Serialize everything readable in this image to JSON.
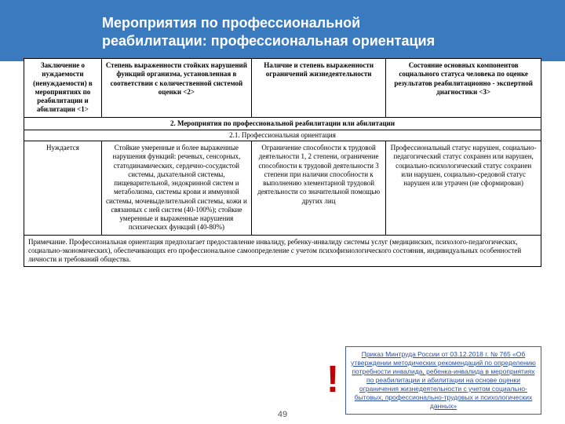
{
  "header": {
    "line1": "Мероприятия по профессиональной",
    "line2": "реабилитации: профессиональная ориентация"
  },
  "table": {
    "head": {
      "c1": "Заключение о нуждаемости (ненуждаемости) в мероприятиях по реабилитации и абилитации <1>",
      "c2": "Степень выраженности стойких нарушений функций организма, установленная в соответствии с количественной системой оценки <2>",
      "c3": "Наличие и степень выраженности ограничений жизнедеятельности",
      "c4": "Состояние основных компонентов социального статуса человека по оценке результатов реабилитационно - экспертной диагностики <3>"
    },
    "section": "2. Мероприятия по профессиональной реабилитации или абилитации",
    "subsection": "2.1. Профессиональная ориентация",
    "row": {
      "c1": "Нуждается",
      "c2": "Стойкие умеренные и более выраженные нарушения функций: речевых, сенсорных, статодинамических, сердечно-сосудистой системы, дыхательной системы, пищеварительной, эндокринной систем и метаболизма, системы крови и иммунной системы, мочевыделительной системы, кожи и связанных с ней систем (40-100%); стойкие умеренные и выраженные нарушения психических функций (40-80%)",
      "c3": "Ограничение способности к трудовой деятельности 1, 2 степени, ограничение способности к трудовой деятельности 3 степени при наличии способности к выполнению элементарной трудовой деятельности со значительной помощью других лиц",
      "c4": "Профессиональный статус нарушен, социально-педагогический статус сохранен или нарушен, социально-психологический статус сохранен или нарушен, социально-средовой статус нарушен или утрачен (не сформирован)"
    },
    "note": "Примечание.\nПрофессиональная ориентация предполагает предоставление инвалиду, ребенку-инвалиду системы услуг (медицинских, психолого-педагогических, социально-экономических), обеспечивающих его профессиональное самоопределение с учетом психофизиологического состояния, индивидуальных особенностей личности и требований общества."
  },
  "pageNumber": "49",
  "exclaim": "!",
  "reference": "Приказ Минтруда России от 03.12.2018 г. № 765 «Об утверждении методических рекомендаций по определению потребности инвалида, ребенка-инвалида в мероприятиях по реабилитации и абилитации на основе оценки ограничения жизнедеятельности с учетом социально-бытовых, профессионально-трудовых и психологических данных»"
}
